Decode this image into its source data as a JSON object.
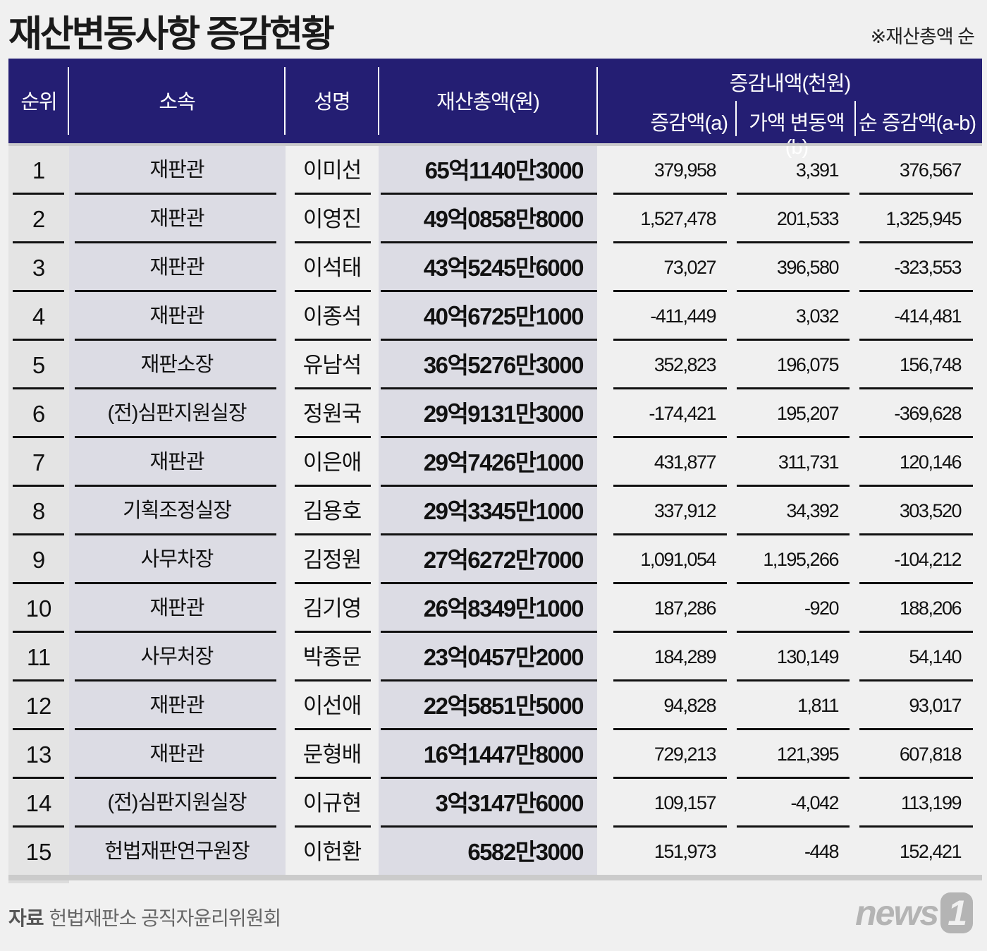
{
  "title": "재산변동사항 증감현황",
  "note": "※재산총액 순",
  "header": {
    "rank": "순위",
    "dept": "소속",
    "name": "성명",
    "total": "재산총액(원)",
    "change_group": "증감내액(천원)",
    "change_a": "증감액(a)",
    "change_b": "가액 변동액(b)",
    "change_net": "순 증감액(a-b)"
  },
  "rows": [
    {
      "rank": "1",
      "dept": "재판관",
      "name": "이미선",
      "total": "65억1140만3000",
      "a": "379,958",
      "b": "3,391",
      "net": "376,567"
    },
    {
      "rank": "2",
      "dept": "재판관",
      "name": "이영진",
      "total": "49억0858만8000",
      "a": "1,527,478",
      "b": "201,533",
      "net": "1,325,945"
    },
    {
      "rank": "3",
      "dept": "재판관",
      "name": "이석태",
      "total": "43억5245만6000",
      "a": "73,027",
      "b": "396,580",
      "net": "-323,553"
    },
    {
      "rank": "4",
      "dept": "재판관",
      "name": "이종석",
      "total": "40억6725만1000",
      "a": "-411,449",
      "b": "3,032",
      "net": "-414,481"
    },
    {
      "rank": "5",
      "dept": "재판소장",
      "name": "유남석",
      "total": "36억5276만3000",
      "a": "352,823",
      "b": "196,075",
      "net": "156,748"
    },
    {
      "rank": "6",
      "dept": "(전)심판지원실장",
      "name": "정원국",
      "total": "29억9131만3000",
      "a": "-174,421",
      "b": "195,207",
      "net": "-369,628"
    },
    {
      "rank": "7",
      "dept": "재판관",
      "name": "이은애",
      "total": "29억7426만1000",
      "a": "431,877",
      "b": "311,731",
      "net": "120,146"
    },
    {
      "rank": "8",
      "dept": "기획조정실장",
      "name": "김용호",
      "total": "29억3345만1000",
      "a": "337,912",
      "b": "34,392",
      "net": "303,520"
    },
    {
      "rank": "9",
      "dept": "사무차장",
      "name": "김정원",
      "total": "27억6272만7000",
      "a": "1,091,054",
      "b": "1,195,266",
      "net": "-104,212"
    },
    {
      "rank": "10",
      "dept": "재판관",
      "name": "김기영",
      "total": "26억8349만1000",
      "a": "187,286",
      "b": "-920",
      "net": "188,206"
    },
    {
      "rank": "11",
      "dept": "사무처장",
      "name": "박종문",
      "total": "23억0457만2000",
      "a": "184,289",
      "b": "130,149",
      "net": "54,140"
    },
    {
      "rank": "12",
      "dept": "재판관",
      "name": "이선애",
      "total": "22억5851만5000",
      "a": "94,828",
      "b": "1,811",
      "net": "93,017"
    },
    {
      "rank": "13",
      "dept": "재판관",
      "name": "문형배",
      "total": "16억1447만8000",
      "a": "729,213",
      "b": "121,395",
      "net": "607,818"
    },
    {
      "rank": "14",
      "dept": "(전)심판지원실장",
      "name": "이규현",
      "total": "3억3147만6000",
      "a": "109,157",
      "b": "-4,042",
      "net": "113,199"
    },
    {
      "rank": "15",
      "dept": "헌법재판연구원장",
      "name": "이헌환",
      "total": "6582만3000",
      "a": "151,973",
      "b": "-448",
      "net": "152,421"
    }
  ],
  "source": {
    "label": "자료",
    "text": "헌법재판소 공직자윤리위원회"
  },
  "logo": {
    "text": "news",
    "mark": "1"
  },
  "colors": {
    "header": "#241e73",
    "shaded_column": "#dcdce4",
    "background": "#f0f0f0"
  }
}
